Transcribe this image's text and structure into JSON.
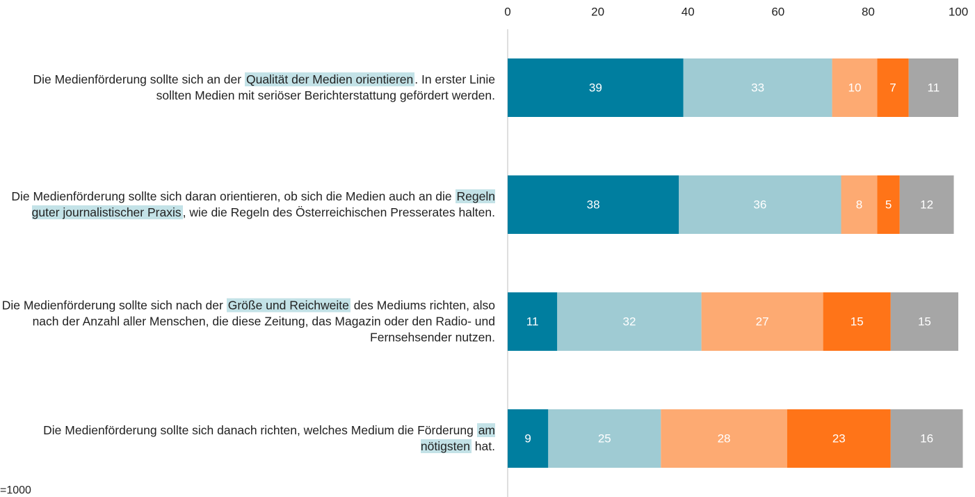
{
  "chart_data": {
    "type": "stacked-bar-horizontal",
    "categories": [
      "Die Medienförderung sollte sich an der Qualität der Medien orientieren. In erster Linie sollten Medien mit seriöser Berichterstattung gefördert werden.",
      "Die Medienförderung sollte sich daran orientieren, ob sich die Medien auch an die Regeln guter journalistischer Praxis, wie die Regeln des Österreichischen Presserates halten.",
      "Die Medienförderung sollte sich nach der Größe und Reichweite des Mediums richten, also nach der Anzahl aller Menschen, die diese Zeitung, das Magazin oder den Radio- und Fernsehsender nutzen.",
      "Die Medienförderung sollte sich danach richten, welches Medium die Förderung am nötigsten hat."
    ],
    "highlights": [
      "Qualität der Medien orientieren",
      "Regeln guter journalistischer Praxis",
      "Größe und Reichweite",
      "am nötigsten"
    ],
    "highlight_color": "#c3e2e7",
    "series": [
      {
        "color": "#007e9f",
        "values": [
          39,
          38,
          11,
          9
        ]
      },
      {
        "color": "#9fcbd3",
        "values": [
          33,
          36,
          32,
          25
        ]
      },
      {
        "color": "#fdaa72",
        "values": [
          10,
          8,
          27,
          28
        ]
      },
      {
        "color": "#ff7418",
        "values": [
          7,
          5,
          15,
          23
        ]
      },
      {
        "color": "#a6a6a6",
        "values": [
          11,
          12,
          15,
          16
        ]
      }
    ],
    "xlim": [
      0,
      100
    ],
    "xticks": [
      0,
      20,
      40,
      60,
      80,
      100
    ],
    "note": "=1000"
  }
}
